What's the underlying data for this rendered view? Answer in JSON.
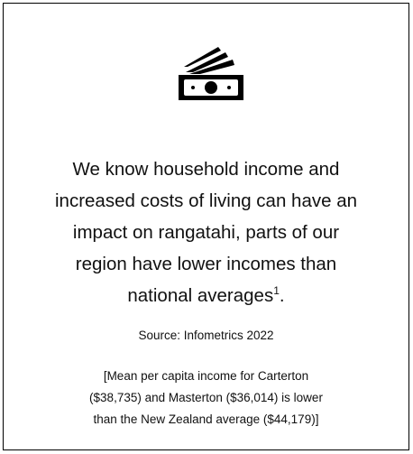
{
  "statement": {
    "lines": [
      "We know household income and",
      "increased costs of living can have an",
      "impact on rangatahi, parts of our",
      "region have lower incomes than",
      "national averages"
    ],
    "footnote_ref": "1",
    "end": "."
  },
  "source": "Source: Infometrics 2022",
  "note": {
    "lines": [
      "[Mean per capita income for Carterton",
      "($38,735) and Masterton ($36,014) is lower",
      "than the New Zealand average ($44,179)]"
    ]
  }
}
